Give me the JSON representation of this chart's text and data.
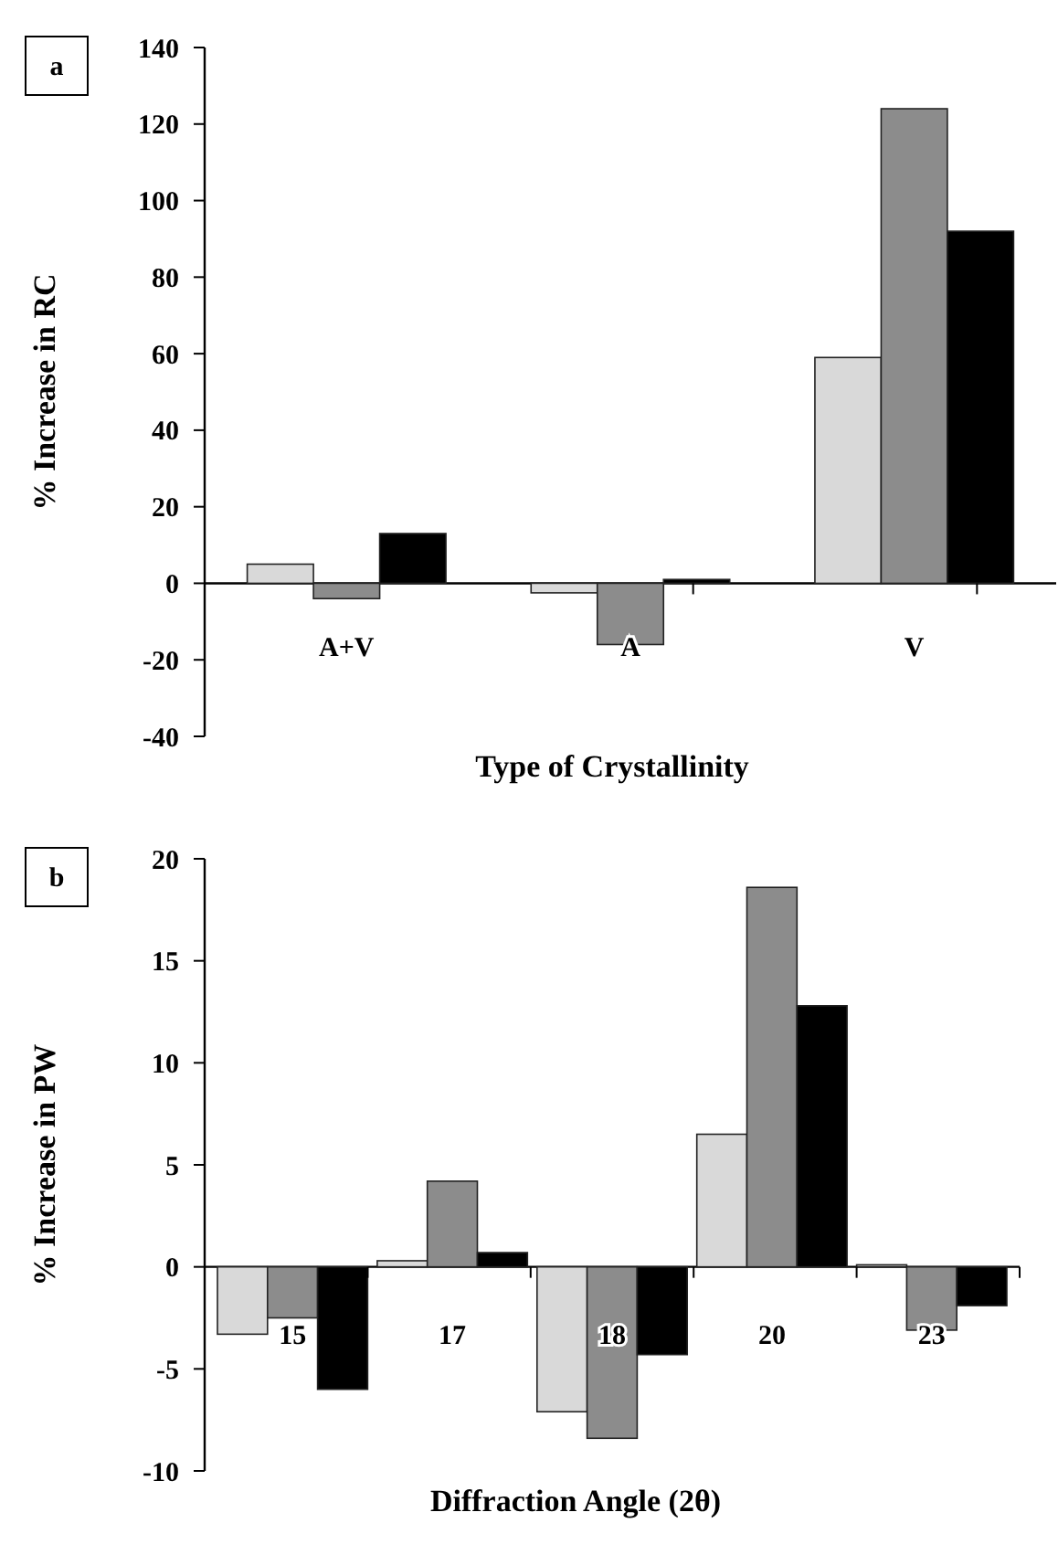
{
  "chart_data": [
    {
      "type": "bar",
      "xlabel": "Type of Crystallinity",
      "ylabel": "% Increase in RC",
      "annotations": [
        "a"
      ],
      "categories": [
        "A+V",
        "A",
        "V"
      ],
      "series": [
        {
          "color": "#d9d9d9",
          "values": [
            5,
            -2.5,
            59
          ]
        },
        {
          "color": "#8c8c8c",
          "values": [
            -4,
            -16,
            124
          ]
        },
        {
          "color": "#000000",
          "values": [
            13,
            1,
            92
          ]
        }
      ],
      "ylim": [
        -40,
        140
      ],
      "yticks": [
        -40,
        -20,
        0,
        20,
        40,
        60,
        80,
        100,
        120,
        140
      ],
      "grid": false
    },
    {
      "type": "bar",
      "xlabel": "Diffraction Angle (2θ)",
      "ylabel": "% Increase in PW",
      "annotations": [
        "b"
      ],
      "categories": [
        "15",
        "17",
        "18",
        "20",
        "23"
      ],
      "series": [
        {
          "color": "#d9d9d9",
          "values": [
            -3.3,
            0.3,
            -7.1,
            6.5,
            0.1
          ]
        },
        {
          "color": "#8c8c8c",
          "values": [
            -2.5,
            4.2,
            -8.4,
            18.6,
            -3.1
          ]
        },
        {
          "color": "#000000",
          "values": [
            -6,
            0.7,
            -4.3,
            12.8,
            -1.9
          ]
        }
      ],
      "ylim": [
        -10,
        20
      ],
      "yticks": [
        -10,
        -5,
        0,
        5,
        10,
        15,
        20
      ],
      "grid": false
    }
  ]
}
